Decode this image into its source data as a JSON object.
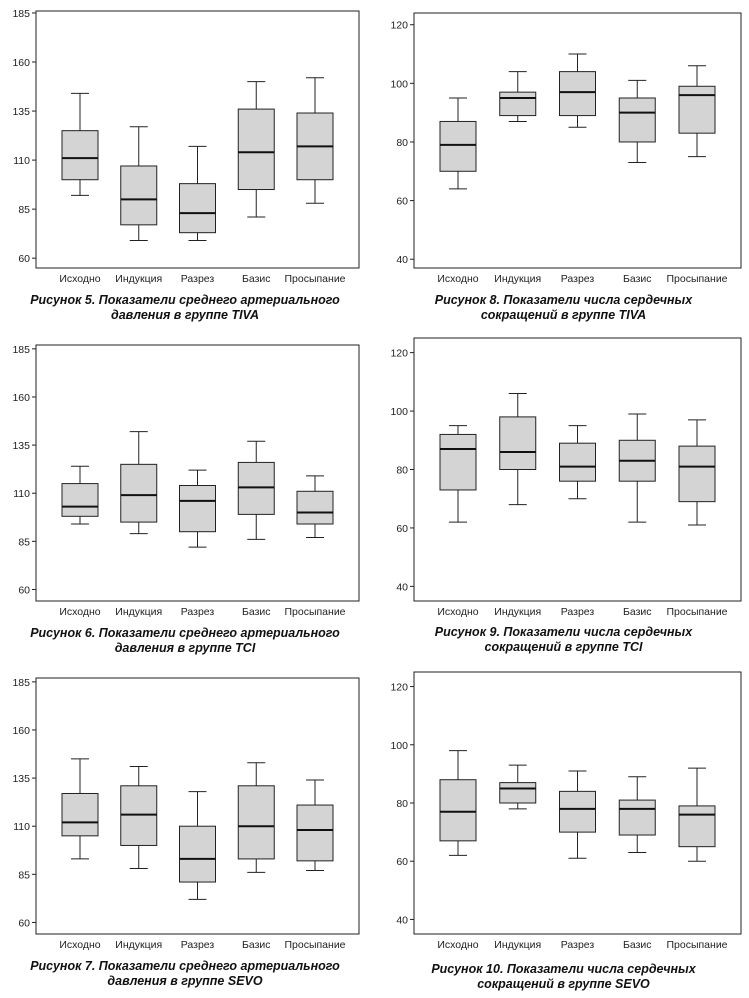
{
  "chart_data": [
    {
      "type": "boxplot",
      "caption_lines": [
        "Рисунок 5. Показатели среднего артериального",
        "давления в группе TIVA"
      ],
      "categories": [
        "Исходно",
        "Индукция",
        "Разрез",
        "Базис",
        "Просыпание"
      ],
      "yticks": [
        60,
        85,
        110,
        135,
        160,
        185
      ],
      "ylim": [
        55,
        186
      ],
      "boxes": [
        {
          "min": 92,
          "q1": 100,
          "median": 111,
          "q3": 125,
          "max": 144
        },
        {
          "min": 69,
          "q1": 77,
          "median": 90,
          "q3": 107,
          "max": 127
        },
        {
          "min": 69,
          "q1": 73,
          "median": 83,
          "q3": 98,
          "max": 117
        },
        {
          "min": 81,
          "q1": 95,
          "median": 114,
          "q3": 136,
          "max": 150
        },
        {
          "min": 88,
          "q1": 100,
          "median": 117,
          "q3": 134,
          "max": 152
        }
      ]
    },
    {
      "type": "boxplot",
      "caption_lines": [
        "Рисунок 8. Показатели числа сердечных",
        "сокращений в группе TIVA"
      ],
      "categories": [
        "Исходно",
        "Индукция",
        "Разрез",
        "Базис",
        "Просыпание"
      ],
      "yticks": [
        40,
        60,
        80,
        100,
        120
      ],
      "ylim": [
        37,
        124
      ],
      "boxes": [
        {
          "min": 64,
          "q1": 70,
          "median": 79,
          "q3": 87,
          "max": 95
        },
        {
          "min": 87,
          "q1": 89,
          "median": 95,
          "q3": 97,
          "max": 104
        },
        {
          "min": 85,
          "q1": 89,
          "median": 97,
          "q3": 104,
          "max": 110
        },
        {
          "min": 73,
          "q1": 80,
          "median": 90,
          "q3": 95,
          "max": 101
        },
        {
          "min": 75,
          "q1": 83,
          "median": 96,
          "q3": 99,
          "max": 106
        }
      ]
    },
    {
      "type": "boxplot",
      "caption_lines": [
        "Рисунок 6. Показатели среднего артериального",
        "давления в группе TCI"
      ],
      "categories": [
        "Исходно",
        "Индукция",
        "Разрез",
        "Базис",
        "Просыпание"
      ],
      "yticks": [
        60,
        85,
        110,
        135,
        160,
        185
      ],
      "ylim": [
        54,
        187
      ],
      "boxes": [
        {
          "min": 94,
          "q1": 98,
          "median": 103,
          "q3": 115,
          "max": 124
        },
        {
          "min": 89,
          "q1": 95,
          "median": 109,
          "q3": 125,
          "max": 142
        },
        {
          "min": 82,
          "q1": 90,
          "median": 106,
          "q3": 114,
          "max": 122
        },
        {
          "min": 86,
          "q1": 99,
          "median": 113,
          "q3": 126,
          "max": 137
        },
        {
          "min": 87,
          "q1": 94,
          "median": 100,
          "q3": 111,
          "max": 119
        }
      ]
    },
    {
      "type": "boxplot",
      "caption_lines": [
        "Рисунок 9. Показатели числа сердечных",
        "сокращений в группе TCI"
      ],
      "categories": [
        "Исходно",
        "Индукция",
        "Разрез",
        "Базис",
        "Просыпание"
      ],
      "yticks": [
        40,
        60,
        80,
        100,
        120
      ],
      "ylim": [
        35,
        125
      ],
      "boxes": [
        {
          "min": 62,
          "q1": 73,
          "median": 87,
          "q3": 92,
          "max": 95
        },
        {
          "min": 68,
          "q1": 80,
          "median": 86,
          "q3": 98,
          "max": 106
        },
        {
          "min": 70,
          "q1": 76,
          "median": 81,
          "q3": 89,
          "max": 95
        },
        {
          "min": 62,
          "q1": 76,
          "median": 83,
          "q3": 90,
          "max": 99
        },
        {
          "min": 61,
          "q1": 69,
          "median": 81,
          "q3": 88,
          "max": 97
        }
      ]
    },
    {
      "type": "boxplot",
      "caption_lines": [
        "Рисунок 7. Показатели среднего артериального",
        "давления в группе SEVO"
      ],
      "categories": [
        "Исходно",
        "Индукция",
        "Разрез",
        "Базис",
        "Просыпание"
      ],
      "yticks": [
        60,
        85,
        110,
        135,
        160,
        185
      ],
      "ylim": [
        54,
        187
      ],
      "boxes": [
        {
          "min": 93,
          "q1": 105,
          "median": 112,
          "q3": 127,
          "max": 145
        },
        {
          "min": 88,
          "q1": 100,
          "median": 116,
          "q3": 131,
          "max": 141
        },
        {
          "min": 72,
          "q1": 81,
          "median": 93,
          "q3": 110,
          "max": 128
        },
        {
          "min": 86,
          "q1": 93,
          "median": 110,
          "q3": 131,
          "max": 143
        },
        {
          "min": 87,
          "q1": 92,
          "median": 108,
          "q3": 121,
          "max": 134
        }
      ]
    },
    {
      "type": "boxplot",
      "caption_lines": [
        "Рисунок 10. Показатели числа сердечных",
        "сокращений в группе SEVO"
      ],
      "categories": [
        "Исходно",
        "Индукция",
        "Разрез",
        "Базис",
        "Просыпание"
      ],
      "yticks": [
        40,
        60,
        80,
        100,
        120
      ],
      "ylim": [
        35,
        125
      ],
      "boxes": [
        {
          "min": 62,
          "q1": 67,
          "median": 77,
          "q3": 88,
          "max": 98
        },
        {
          "min": 78,
          "q1": 80,
          "median": 85,
          "q3": 87,
          "max": 93
        },
        {
          "min": 61,
          "q1": 70,
          "median": 78,
          "q3": 84,
          "max": 91
        },
        {
          "min": 63,
          "q1": 69,
          "median": 78,
          "q3": 81,
          "max": 89
        },
        {
          "min": 60,
          "q1": 65,
          "median": 76,
          "q3": 79,
          "max": 92
        }
      ]
    }
  ]
}
